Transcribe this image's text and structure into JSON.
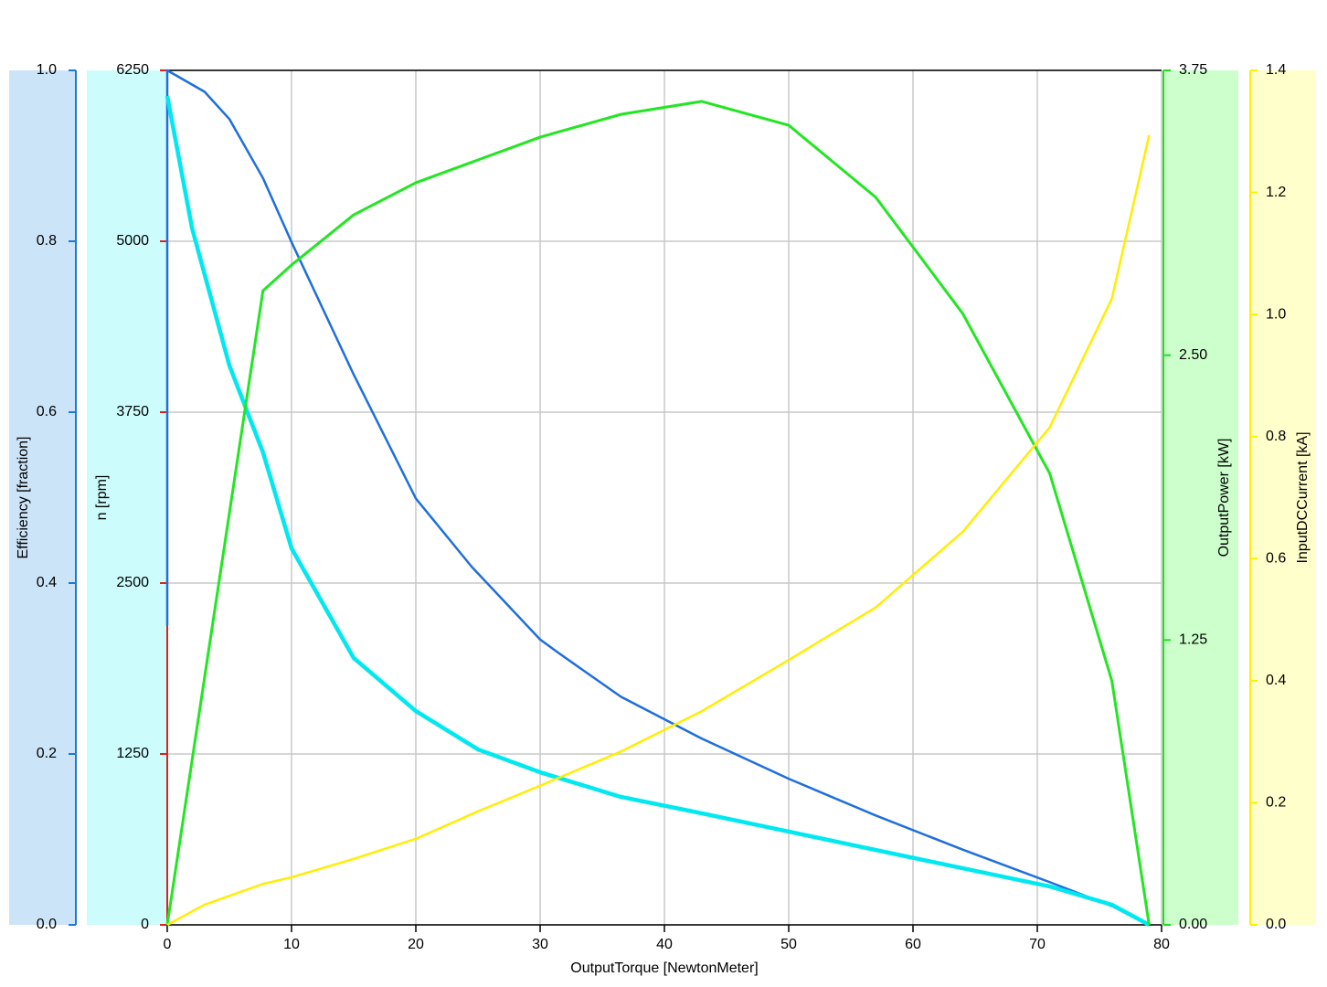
{
  "chart_data": {
    "type": "line",
    "x_label": "OutputTorque [NewtonMeter]",
    "xlim": [
      0,
      80
    ],
    "xticks": [
      0,
      10,
      20,
      30,
      40,
      50,
      60,
      70,
      80
    ],
    "grid": true,
    "y_axes": [
      {
        "id": "y",
        "label": "Efficiency [fraction]",
        "lim": [
          0,
          1
        ],
        "color": "#1e78dc",
        "band_color": "#cce4f8",
        "ticks": [
          {
            "value": 0,
            "label": "0.0"
          },
          0.2,
          0.4,
          0.6,
          0.8,
          {
            "value": 1,
            "label": "1.0"
          }
        ]
      },
      {
        "id": "y2",
        "label": "n [rpm]",
        "lim": [
          0,
          6250
        ],
        "color": "#e02020",
        "band_color": "#ccfcfc",
        "ticks": [
          0,
          1250,
          2500,
          3750,
          5000,
          6250
        ]
      },
      {
        "id": "y3",
        "label": "OutputPower [kW]",
        "lim": [
          0,
          3.75
        ],
        "color": "#22dd22",
        "band_color": "#ccffcc",
        "ticks": [
          {
            "value": 0,
            "label": "0.00"
          },
          1.25,
          {
            "value": 2.5,
            "label": "2.50"
          },
          3.75
        ]
      },
      {
        "id": "y4",
        "label": "InputDCCurrent [kA]",
        "lim": [
          0,
          1.4
        ],
        "color": "#ffee00",
        "band_color": "#ffffcc",
        "ticks": [
          {
            "value": 0,
            "label": "0.0"
          },
          0.2,
          0.4,
          0.6,
          0.8,
          {
            "value": 1,
            "label": "1.0"
          },
          1.2,
          1.4
        ]
      }
    ],
    "series": [
      {
        "axis": "y",
        "color": "#1e6fdc",
        "width": 2.5,
        "x": [
          0,
          0,
          3,
          5,
          7.7,
          10,
          15,
          20,
          24.5,
          30,
          31.5,
          36.5,
          43,
          50,
          57,
          64,
          71,
          76,
          79
        ],
        "values": [
          0.35,
          1.0,
          0.975,
          0.943,
          0.874,
          0.799,
          0.644,
          0.499,
          0.419,
          0.334,
          0.318,
          0.267,
          0.218,
          0.171,
          0.128,
          0.088,
          0.05,
          0.022,
          0
        ]
      },
      {
        "axis": "y2",
        "color": "#00e8f0",
        "width": 4.5,
        "x": [
          0,
          2,
          5,
          7.7,
          10,
          15,
          20,
          25,
          30,
          36.5,
          43,
          50,
          57,
          64,
          71,
          76,
          79
        ],
        "values": [
          6063,
          5094,
          4091,
          3456,
          2754,
          1952,
          1564,
          1283,
          1116,
          936,
          816,
          682,
          548,
          414,
          281,
          147,
          0
        ]
      },
      {
        "axis": "y3",
        "color": "#22e622",
        "width": 3,
        "x": [
          0,
          7.7,
          10,
          15,
          20,
          25,
          30,
          36.5,
          43,
          50,
          57,
          64,
          71,
          76,
          79
        ],
        "values": [
          0,
          2.783,
          2.896,
          3.116,
          3.257,
          3.357,
          3.457,
          3.557,
          3.614,
          3.509,
          3.193,
          2.683,
          1.981,
          1.071,
          0
        ]
      },
      {
        "axis": "y4",
        "color": "#ffee00",
        "width": 2.5,
        "x": [
          0,
          3,
          7.7,
          10,
          15,
          20,
          25,
          30,
          36.5,
          43,
          50,
          57,
          64,
          71,
          76,
          79
        ],
        "values": [
          0,
          0.033,
          0.067,
          0.078,
          0.108,
          0.141,
          0.186,
          0.228,
          0.284,
          0.35,
          0.434,
          0.52,
          0.644,
          0.815,
          1.026,
          1.294
        ]
      }
    ]
  }
}
